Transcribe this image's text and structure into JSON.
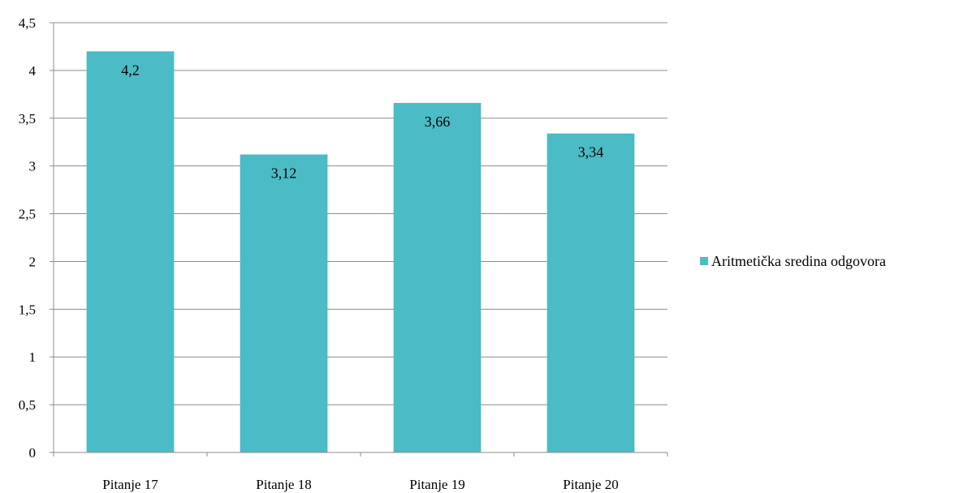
{
  "chart_data": {
    "type": "bar",
    "categories": [
      "Pitanje 17",
      "Pitanje 18",
      "Pitanje 19",
      "Pitanje 20"
    ],
    "series": [
      {
        "name": "Aritmetička sredina odgovora",
        "values": [
          4.2,
          3.12,
          3.66,
          3.34
        ],
        "data_labels": [
          "4,2",
          "3,12",
          "3,66",
          "3,34"
        ],
        "color": "#4BBBC5"
      }
    ],
    "y_ticks": [
      0,
      0.5,
      1,
      1.5,
      2,
      2.5,
      3,
      3.5,
      4,
      4.5
    ],
    "y_tick_labels": [
      "0",
      "0,5",
      "1",
      "1,5",
      "2",
      "2,5",
      "3",
      "3,5",
      "4",
      "4,5"
    ],
    "ylim": [
      0,
      4.5
    ],
    "grid": true,
    "legend_position": "right",
    "title": "",
    "xlabel": "",
    "ylabel": ""
  }
}
